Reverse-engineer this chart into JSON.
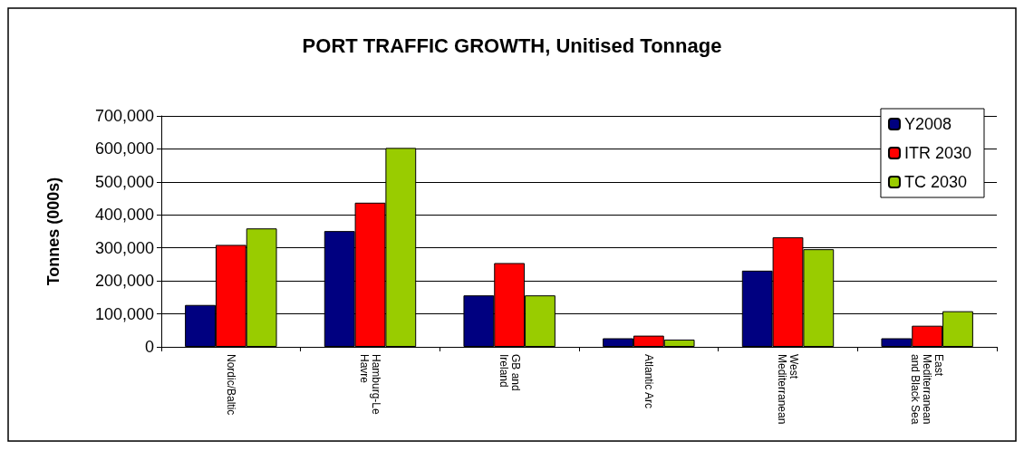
{
  "chart_data": {
    "type": "bar",
    "title": "PORT TRAFFIC GROWTH, Unitised Tonnage",
    "ylabel": "Tonnes (000s)",
    "categories": [
      "Nordic/Baltic",
      "Hamburg-Le\nHavre",
      "GB and\nIreland",
      "Atlantic Arc",
      "West\nMediterranean",
      "East\nMediterranean\nand Black Sea"
    ],
    "series": [
      {
        "name": "Y2008",
        "color": "#000080",
        "values": [
          127000,
          351000,
          156000,
          26000,
          231000,
          26000
        ]
      },
      {
        "name": "ITR 2030",
        "color": "#ff0000",
        "values": [
          309000,
          437000,
          254000,
          34000,
          332000,
          64000
        ]
      },
      {
        "name": "TC 2030",
        "color": "#99cc00",
        "values": [
          359000,
          603000,
          156000,
          22000,
          296000,
          108000
        ]
      }
    ],
    "ylim": [
      0,
      700000
    ],
    "yticks": [
      0,
      {
        "value": 100000,
        "label": "100,000"
      },
      {
        "value": 200000,
        "label": "200,000"
      },
      {
        "value": 300000,
        "label": "300,000"
      },
      {
        "value": 400000,
        "label": "400,000"
      },
      {
        "value": 500000,
        "label": "500,000"
      },
      {
        "value": 600000,
        "label": "600,000"
      },
      {
        "value": 700000,
        "label": "700,000"
      }
    ],
    "grid": "y",
    "legend": "top right"
  }
}
